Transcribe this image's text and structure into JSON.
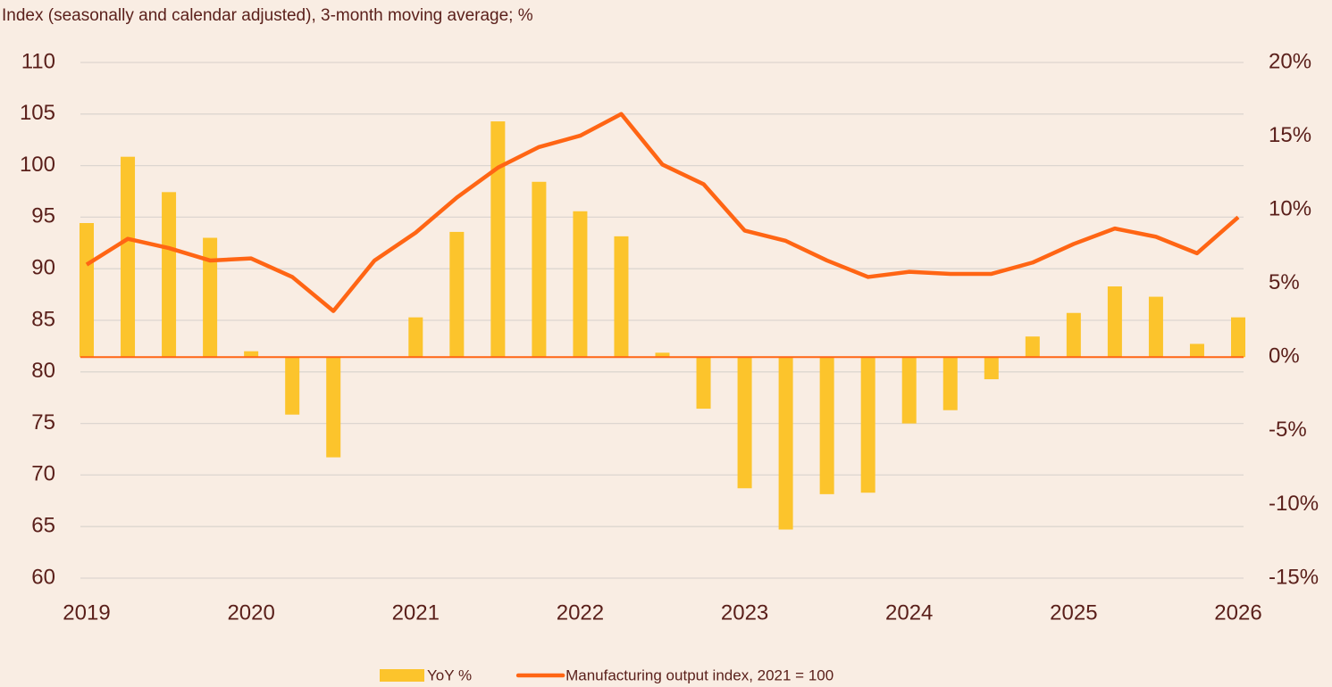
{
  "chart_data": {
    "type": "bar-line",
    "title": "Index (seasonally and calendar adjusted), 3-month moving average; %",
    "x": [
      2019,
      2019.25,
      2019.5,
      2019.75,
      2020,
      2020.25,
      2020.5,
      2020.75,
      2021,
      2021.25,
      2021.5,
      2021.75,
      2022,
      2022.25,
      2022.5,
      2022.75,
      2023,
      2023.25,
      2023.5,
      2023.75,
      2024,
      2024.25,
      2024.5,
      2024.75,
      2025,
      2025.25,
      2025.5,
      2025.75,
      2026
    ],
    "series": [
      {
        "name": "YoY %",
        "type": "bar",
        "axis": "y2",
        "color": "#fcc42c",
        "values": [
          9.1,
          13.6,
          11.2,
          8.1,
          0.4,
          -3.9,
          -6.8,
          0,
          2.7,
          8.5,
          16.0,
          11.9,
          9.9,
          8.2,
          0.3,
          -3.5,
          -8.9,
          -11.7,
          -9.3,
          -9.2,
          -4.5,
          -3.6,
          -1.5,
          1.4,
          3.0,
          4.8,
          4.1,
          0.9,
          2.7
        ]
      },
      {
        "name": "Manufacturing output index, 2021 = 100",
        "type": "line",
        "axis": "y",
        "color": "#ff6514",
        "values": [
          90.4,
          92.9,
          92.0,
          90.8,
          91.0,
          89.2,
          85.9,
          90.8,
          93.5,
          96.9,
          99.8,
          101.8,
          102.9,
          105.0,
          100.1,
          98.2,
          93.7,
          92.7,
          90.8,
          89.2,
          89.7,
          89.5,
          89.5,
          90.6,
          92.4,
          93.9,
          93.1,
          91.5,
          95.0
        ]
      }
    ],
    "xlim": [
      2019,
      2026
    ],
    "xticks": [
      2019,
      2020,
      2021,
      2022,
      2023,
      2024,
      2025,
      2026
    ],
    "ylim": [
      60,
      110
    ],
    "yticks": [
      60,
      65,
      70,
      75,
      80,
      85,
      90,
      95,
      100,
      105,
      110
    ],
    "y2lim": [
      -15,
      20
    ],
    "y2ticks": [
      {
        "value": -15,
        "label": "-15%"
      },
      {
        "value": -10,
        "label": "-10%"
      },
      {
        "value": -5,
        "label": "-5%"
      },
      {
        "value": 0,
        "label": "0%"
      },
      {
        "value": 5,
        "label": "5%"
      },
      {
        "value": 10,
        "label": "10%"
      },
      {
        "value": 15,
        "label": "15%"
      },
      {
        "value": 20,
        "label": "20%"
      }
    ],
    "grid": true,
    "legend": "bottom"
  }
}
